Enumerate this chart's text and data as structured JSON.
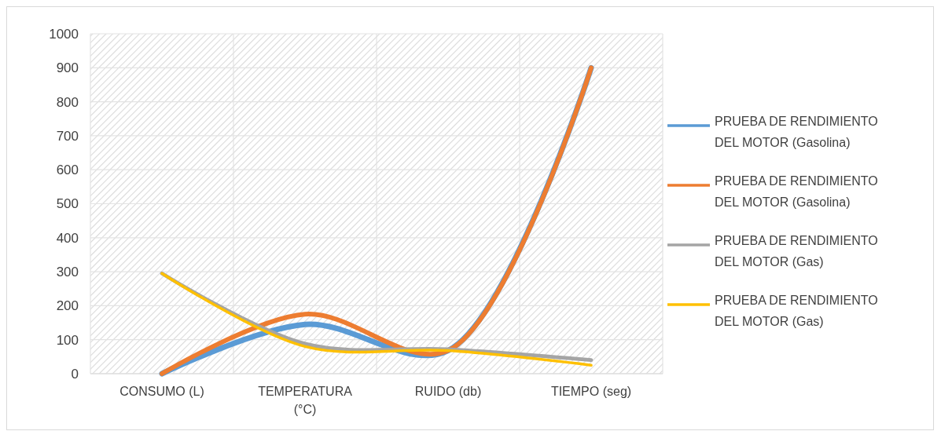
{
  "chart_data": {
    "type": "line",
    "categories": [
      "CONSUMO (L)",
      "TEMPERATURA (°C)",
      "RUIDO (db)",
      "TIEMPO (seg)"
    ],
    "series": [
      {
        "name": "PRUEBA DE RENDIMIENTO DEL MOTOR (Gasolina)",
        "color": "#5b9bd5",
        "values": [
          0,
          145,
          68,
          900
        ]
      },
      {
        "name": "PRUEBA DE RENDIMIENTO DEL MOTOR (Gasolina)",
        "color": "#ed7d31",
        "values": [
          0,
          175,
          68,
          900
        ]
      },
      {
        "name": "PRUEBA DE RENDIMIENTO DEL MOTOR (Gas)",
        "color": "#a5a5a5",
        "values": [
          295,
          88,
          72,
          40
        ]
      },
      {
        "name": "PRUEBA DE RENDIMIENTO DEL MOTOR (Gas)",
        "color": "#ffc000",
        "values": [
          295,
          80,
          68,
          25
        ]
      }
    ],
    "ylim": [
      0,
      1000
    ],
    "yticks": [
      0,
      100,
      200,
      300,
      400,
      500,
      600,
      700,
      800,
      900,
      1000
    ],
    "grid": true,
    "legend": "right",
    "marker": "none",
    "line_style": "solid"
  }
}
